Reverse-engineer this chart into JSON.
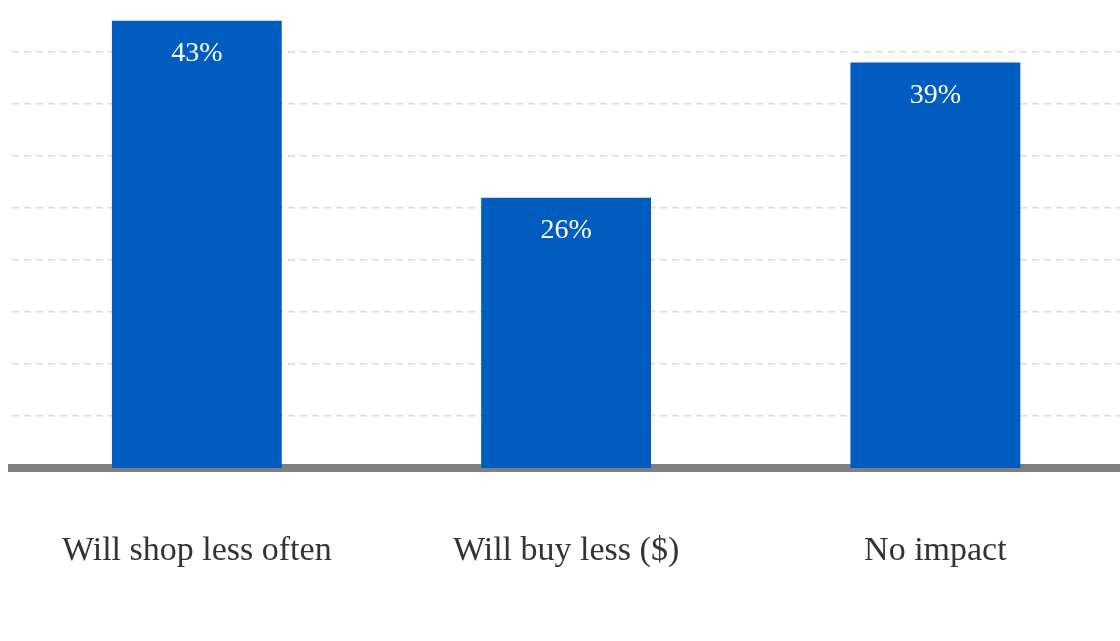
{
  "chart_data": {
    "type": "bar",
    "categories": [
      "Will shop less often",
      "Will buy less ($)",
      "No impact"
    ],
    "values": [
      43,
      26,
      39
    ],
    "color": "#005cbf",
    "yticks": [
      {
        "value": 5,
        "label": null
      },
      {
        "value": 10,
        "label": null
      },
      {
        "value": 15,
        "label": null
      },
      {
        "value": 20,
        "label": null
      },
      {
        "value": 25,
        "label": null
      },
      {
        "value": 30,
        "label": null
      },
      {
        "value": 35,
        "label": null
      },
      {
        "value": 40,
        "label": null
      }
    ],
    "value_labels": [
      "43%",
      "26%",
      "39%"
    ],
    "grid": "y",
    "tick_labels": "x",
    "legend": false
  }
}
